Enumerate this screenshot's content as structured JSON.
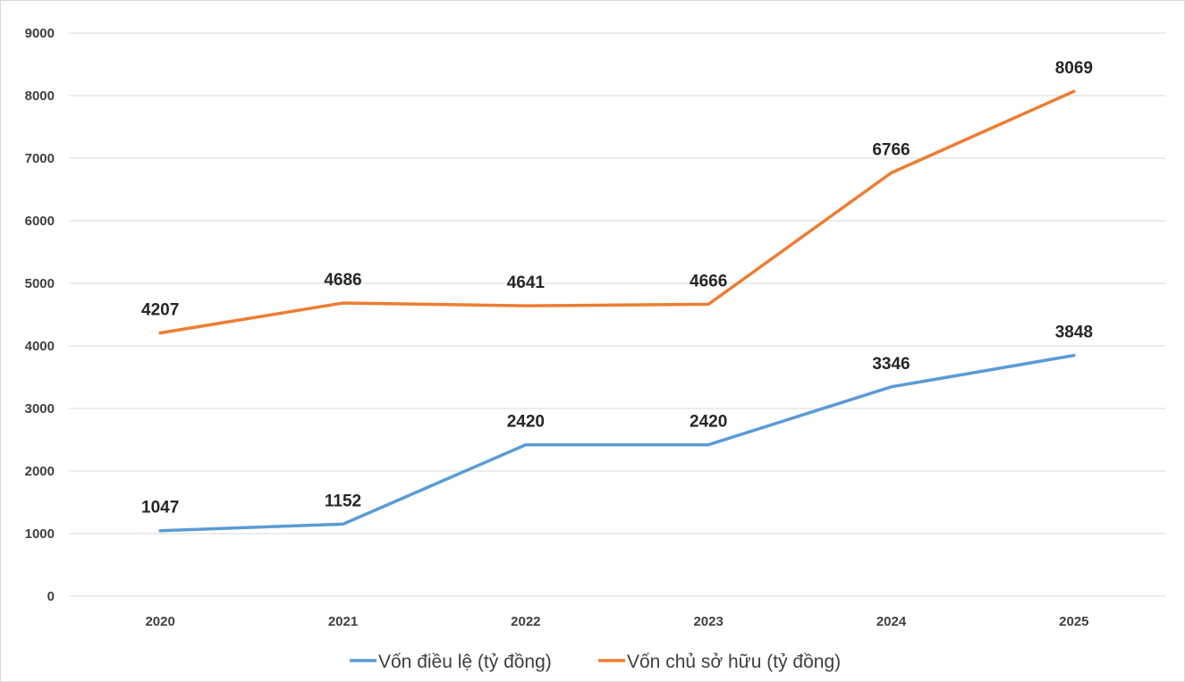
{
  "chart_data": {
    "type": "line",
    "categories": [
      "2020",
      "2021",
      "2022",
      "2023",
      "2024",
      "2025"
    ],
    "ylim": [
      0,
      9000
    ],
    "yticks": [
      0,
      1000,
      2000,
      3000,
      4000,
      5000,
      6000,
      7000,
      8000,
      9000
    ],
    "grid": true,
    "legend_position": "bottom",
    "series": [
      {
        "name": "Vốn điều lệ (tỷ đồng)",
        "color": "#5b9bd5",
        "values": [
          1047,
          1152,
          2420,
          2420,
          3346,
          3848
        ],
        "labels": [
          "1047",
          "1152",
          "2420",
          "2420",
          "3346",
          "3848"
        ]
      },
      {
        "name": "Vốn chủ sở hữu (tỷ đồng)",
        "color": "#ed7d31",
        "values": [
          4207,
          4686,
          4641,
          4666,
          6766,
          8069
        ],
        "labels": [
          "4207",
          "4686",
          "4641",
          "4666",
          "6766",
          "8069"
        ]
      }
    ]
  }
}
